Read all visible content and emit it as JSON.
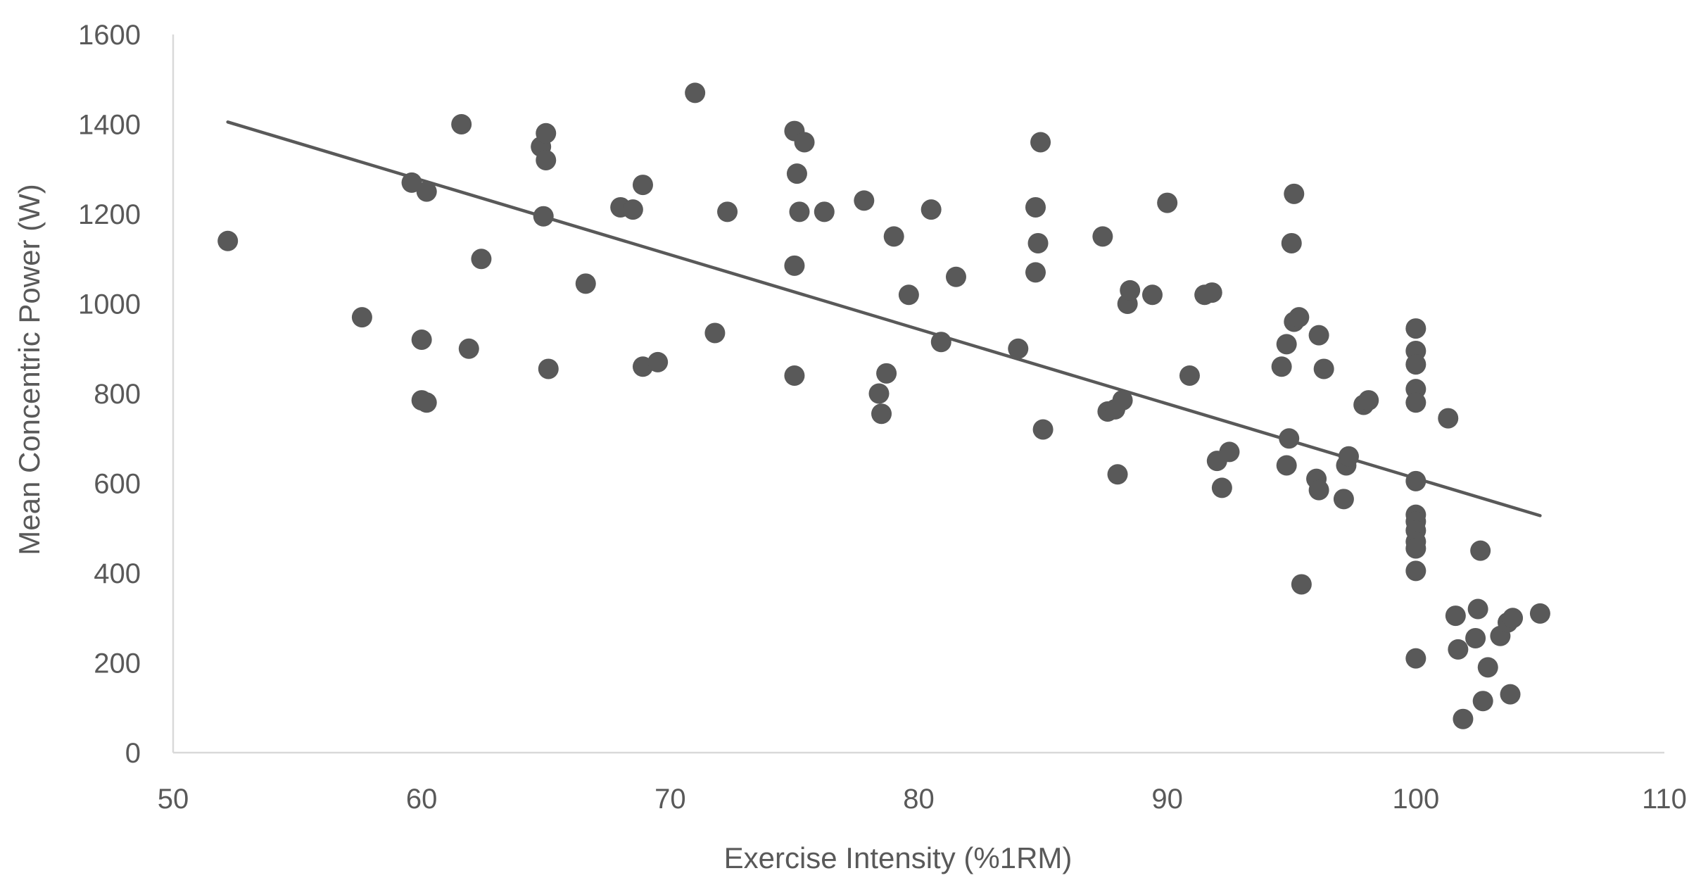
{
  "chart_data": {
    "type": "scatter",
    "title": "",
    "xlabel": "Exercise Intensity (%1RM)",
    "ylabel": "Mean Concentric  Power  (W)",
    "xlim": [
      50,
      110
    ],
    "ylim": [
      0,
      1600
    ],
    "xticks": [
      50,
      60,
      70,
      80,
      90,
      100,
      110
    ],
    "yticks": [
      0,
      200,
      400,
      600,
      800,
      1000,
      1200,
      1400,
      1600
    ],
    "grid": false,
    "legend": "none",
    "colors": {
      "points": "#595959",
      "trendline": "#595959",
      "axis": "#d9d9d9",
      "text": "#595959"
    },
    "trendline": {
      "type": "linear",
      "points": [
        [
          52.2,
          1405
        ],
        [
          105,
          528
        ]
      ]
    },
    "series": [
      {
        "name": "Mean Concentric Power",
        "points": [
          [
            52.2,
            1140
          ],
          [
            57.6,
            970
          ],
          [
            59.6,
            1270
          ],
          [
            60.0,
            920
          ],
          [
            60.0,
            785
          ],
          [
            60.2,
            1250
          ],
          [
            60.2,
            780
          ],
          [
            61.6,
            1400
          ],
          [
            61.9,
            900
          ],
          [
            62.4,
            1100
          ],
          [
            64.8,
            1350
          ],
          [
            64.9,
            1195
          ],
          [
            65.0,
            1380
          ],
          [
            65.0,
            1320
          ],
          [
            65.1,
            855
          ],
          [
            66.6,
            1045
          ],
          [
            68.0,
            1215
          ],
          [
            68.5,
            1210
          ],
          [
            68.9,
            1265
          ],
          [
            68.9,
            860
          ],
          [
            69.5,
            870
          ],
          [
            71.0,
            1470
          ],
          [
            71.8,
            935
          ],
          [
            72.3,
            1205
          ],
          [
            75.0,
            1385
          ],
          [
            75.0,
            1085
          ],
          [
            75.0,
            840
          ],
          [
            75.1,
            1290
          ],
          [
            75.2,
            1205
          ],
          [
            75.4,
            1360
          ],
          [
            76.2,
            1205
          ],
          [
            77.8,
            1230
          ],
          [
            78.4,
            800
          ],
          [
            78.5,
            755
          ],
          [
            78.7,
            845
          ],
          [
            79.0,
            1150
          ],
          [
            79.6,
            1020
          ],
          [
            80.5,
            1210
          ],
          [
            80.9,
            915
          ],
          [
            81.5,
            1060
          ],
          [
            84.0,
            900
          ],
          [
            84.7,
            1215
          ],
          [
            84.7,
            1070
          ],
          [
            84.8,
            1135
          ],
          [
            84.9,
            1360
          ],
          [
            85.0,
            720
          ],
          [
            87.4,
            1150
          ],
          [
            87.6,
            760
          ],
          [
            87.9,
            765
          ],
          [
            88.0,
            620
          ],
          [
            88.2,
            785
          ],
          [
            88.4,
            1000
          ],
          [
            88.5,
            1030
          ],
          [
            89.4,
            1020
          ],
          [
            90.0,
            1225
          ],
          [
            90.9,
            840
          ],
          [
            91.5,
            1020
          ],
          [
            91.8,
            1025
          ],
          [
            92.0,
            650
          ],
          [
            92.2,
            590
          ],
          [
            92.5,
            670
          ],
          [
            94.6,
            860
          ],
          [
            94.8,
            910
          ],
          [
            94.8,
            640
          ],
          [
            94.9,
            700
          ],
          [
            95.0,
            1135
          ],
          [
            95.1,
            1245
          ],
          [
            95.1,
            960
          ],
          [
            95.3,
            970
          ],
          [
            95.4,
            375
          ],
          [
            96.0,
            610
          ],
          [
            96.1,
            585
          ],
          [
            96.1,
            930
          ],
          [
            96.3,
            855
          ],
          [
            97.1,
            565
          ],
          [
            97.2,
            640
          ],
          [
            97.3,
            660
          ],
          [
            97.9,
            775
          ],
          [
            98.1,
            785
          ],
          [
            100.0,
            945
          ],
          [
            100.0,
            895
          ],
          [
            100.0,
            865
          ],
          [
            100.0,
            810
          ],
          [
            100.0,
            780
          ],
          [
            100.0,
            605
          ],
          [
            100.0,
            530
          ],
          [
            100.0,
            515
          ],
          [
            100.0,
            495
          ],
          [
            100.0,
            470
          ],
          [
            100.0,
            455
          ],
          [
            100.0,
            405
          ],
          [
            100.0,
            210
          ],
          [
            101.3,
            745
          ],
          [
            101.6,
            305
          ],
          [
            101.7,
            230
          ],
          [
            101.9,
            75
          ],
          [
            102.4,
            255
          ],
          [
            102.5,
            320
          ],
          [
            102.6,
            450
          ],
          [
            102.7,
            115
          ],
          [
            102.9,
            190
          ],
          [
            103.4,
            260
          ],
          [
            103.7,
            290
          ],
          [
            103.8,
            130
          ],
          [
            103.9,
            300
          ],
          [
            105.0,
            310
          ]
        ]
      }
    ]
  }
}
